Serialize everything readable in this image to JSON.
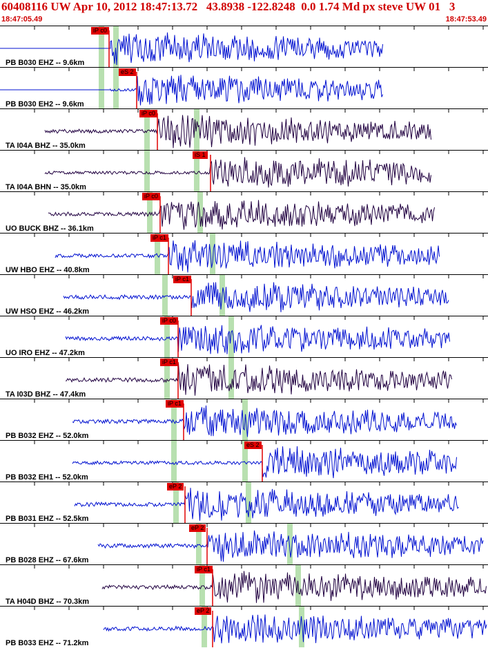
{
  "header": {
    "title": "60408116 UW Apr 10, 2012 18:47:13.72   43.8938 -122.8248  0.0 1.74 Md px steve UW 01   3",
    "time_start": "18:47:05.49",
    "time_end": "18:47:53.49"
  },
  "colors": {
    "blue_trace": "#0010d0",
    "dark_trace": "#200040",
    "pick": "#e00000",
    "green_marker": "#b8e0b0",
    "title": "#d00000"
  },
  "traces": [
    {
      "label": "PB B030 EHZ -- 9.6km",
      "pick": "iP c0",
      "color": "blue"
    },
    {
      "label": "PB B030 EH2 -- 9.6km",
      "pick": "eS 2",
      "color": "blue"
    },
    {
      "label": "TA I04A BHZ -- 35.0km",
      "pick": "iP c0",
      "color": "dark"
    },
    {
      "label": "TA I04A BHN -- 35.0km",
      "pick": "iS 1",
      "color": "dark"
    },
    {
      "label": "UO BUCK BHZ -- 36.1km",
      "pick": "iP c0",
      "color": "dark"
    },
    {
      "label": "UW HBO EHZ -- 40.8km",
      "pick": "iP c1",
      "color": "blue"
    },
    {
      "label": "UW HSO EHZ -- 46.2km",
      "pick": "iP c1",
      "color": "blue"
    },
    {
      "label": "UO IRO EHZ -- 47.2km",
      "pick": "iP c0",
      "color": "blue"
    },
    {
      "label": "TA I03D BHZ -- 47.4km",
      "pick": "iP c1",
      "color": "dark"
    },
    {
      "label": "PB B032 EHZ -- 52.0km",
      "pick": "iP c1",
      "color": "blue"
    },
    {
      "label": "PB B032 EH1 -- 52.0km",
      "pick": "eS 2",
      "color": "blue"
    },
    {
      "label": "PB B031 EHZ -- 52.5km",
      "pick": "eP 2",
      "color": "blue"
    },
    {
      "label": "PB B028 EHZ -- 67.6km",
      "pick": "eP 2",
      "color": "blue"
    },
    {
      "label": "TA H04D BHZ -- 70.3km",
      "pick": "iP c1",
      "color": "dark"
    },
    {
      "label": "PB B033 EHZ -- 71.2km",
      "pick": "eP 2",
      "color": "blue"
    }
  ]
}
